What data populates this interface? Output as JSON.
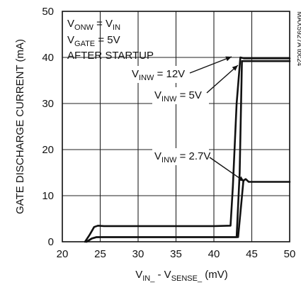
{
  "chart_data": {
    "type": "line",
    "xlabel": "V_IN_ - V_SENSE_ (mV)",
    "ylabel": "GATE DISCHARGE CURRENT (mA)",
    "xlim": [
      20,
      50
    ],
    "ylim": [
      0,
      50
    ],
    "x_ticks": [
      "20",
      "25",
      "30",
      "35",
      "40",
      "45",
      "50"
    ],
    "y_ticks": [
      "0",
      "10",
      "20",
      "30",
      "40",
      "50"
    ],
    "grid": true,
    "conditions": [
      {
        "main": "V",
        "sub": "ONW",
        "rest": " = V",
        "sub2": "IN"
      },
      {
        "main": "V",
        "sub": "GATE",
        "rest": " = 5V",
        "sub2": ""
      },
      {
        "main": "AFTER STARTUP",
        "sub": "",
        "rest": "",
        "sub2": ""
      }
    ],
    "watermark": "MAX5927A toc24",
    "series": [
      {
        "name": "V_INW = 12V",
        "label_main": "V",
        "label_sub": "INW",
        "label_rest": " = 12V",
        "x": [
          23.0,
          23.6,
          24.2,
          24.7,
          25.5,
          30,
          35,
          40,
          42.2,
          42.5,
          43.0,
          43.5,
          44.0,
          50
        ],
        "y": [
          0,
          1.5,
          3.2,
          3.5,
          3.4,
          3.4,
          3.4,
          3.4,
          3.5,
          12,
          30,
          40,
          39.8,
          39.8
        ]
      },
      {
        "name": "V_INW = 5V",
        "label_main": "V",
        "label_sub": "INW",
        "label_rest": " = 5V",
        "x": [
          23.2,
          23.9,
          24.5,
          25.5,
          30,
          35,
          40,
          43.0,
          43.4,
          43.7,
          44.2,
          50
        ],
        "y": [
          0,
          0.7,
          1.0,
          1.0,
          1.0,
          1.0,
          1.0,
          1.0,
          15,
          39.2,
          39.2,
          39.2
        ]
      },
      {
        "name": "V_INW = 2.7V",
        "label_main": "V",
        "label_sub": "INW",
        "label_rest": " = 2.7V",
        "x": [
          23.2,
          23.9,
          24.5,
          25.5,
          30,
          35,
          40,
          43.2,
          43.6,
          43.9,
          44.2,
          44.6,
          50
        ],
        "y": [
          0,
          0.7,
          1.0,
          1.0,
          1.0,
          1.0,
          1.0,
          1.0,
          8,
          13.3,
          13.6,
          13.0,
          13.0
        ]
      }
    ]
  }
}
